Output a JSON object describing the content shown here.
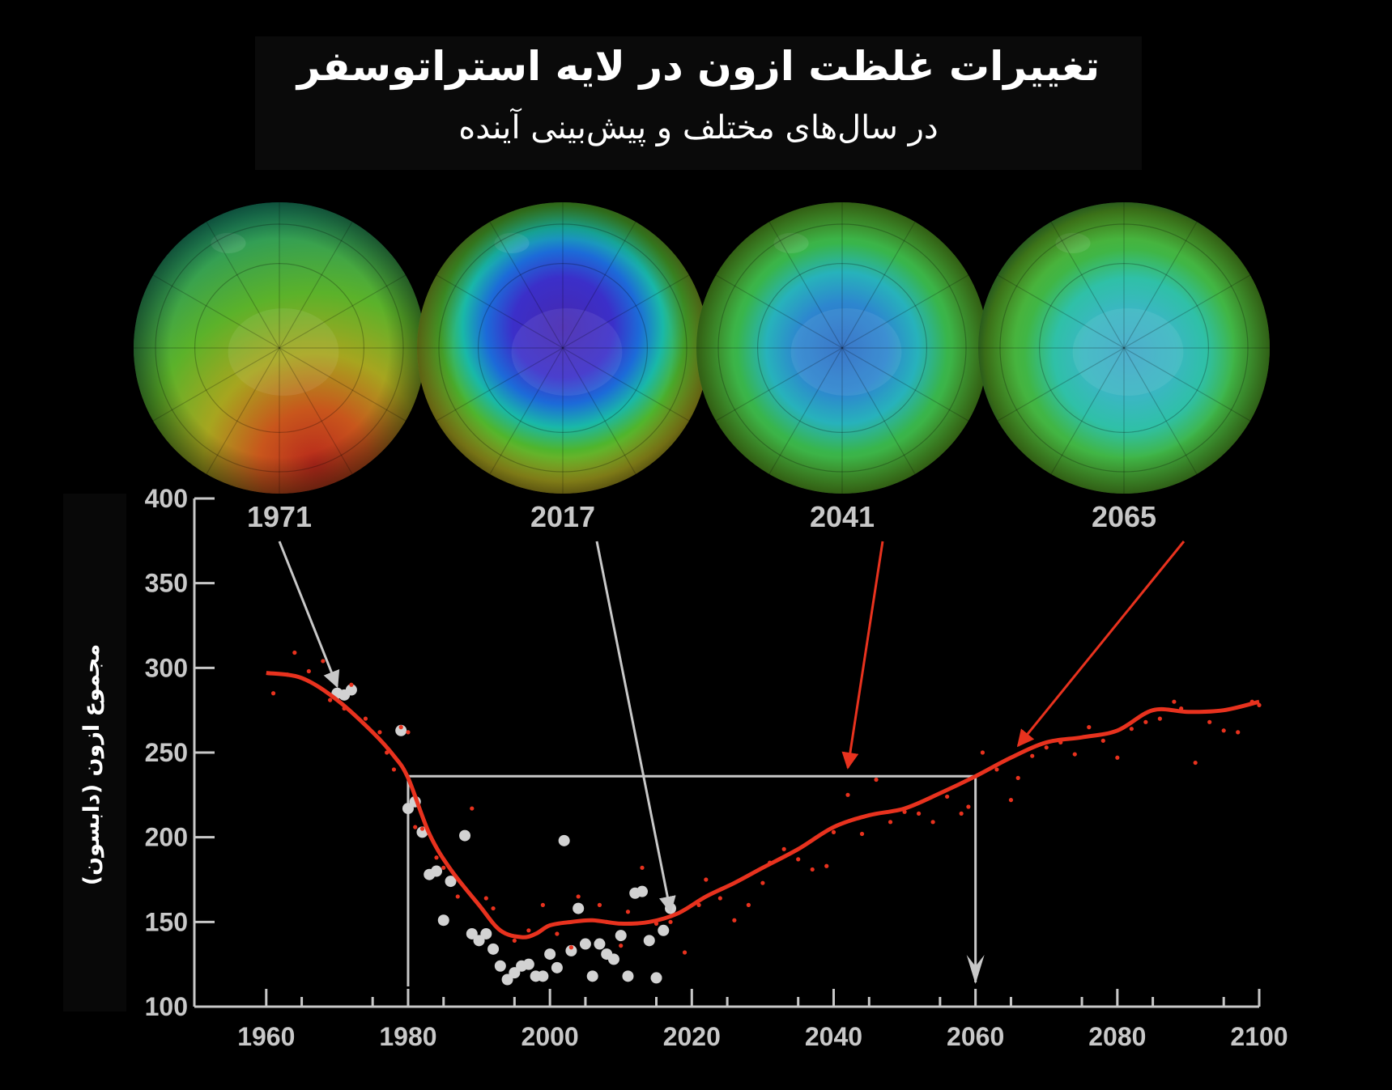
{
  "title": "تغییرات غلظت ازون در لایه استراتوسفر",
  "subtitle": "در سال‌های مختلف و پیش‌بینی آینده",
  "chart_data": {
    "type": "scatter",
    "ylabel": "مجموع ازون (دابسون)",
    "xlabel": "",
    "xlim": [
      1955,
      2100
    ],
    "ylim": [
      100,
      400
    ],
    "x_ticks": [
      1960,
      1980,
      2000,
      2020,
      2040,
      2060,
      2080,
      2100
    ],
    "y_ticks": [
      100,
      150,
      200,
      250,
      300,
      350,
      400
    ],
    "grid": false,
    "globes": [
      {
        "year": "1971",
        "point": [
          1970,
          289
        ],
        "arrow_color": "#c8c8c8",
        "state": "thick"
      },
      {
        "year": "2017",
        "point": [
          2017,
          156
        ],
        "arrow_color": "#c8c8c8",
        "state": "hole"
      },
      {
        "year": "2041",
        "point": [
          2042,
          241
        ],
        "arrow_color": "#e8321e",
        "state": "recovering"
      },
      {
        "year": "2065",
        "point": [
          2066,
          254
        ],
        "arrow_color": "#e8321e",
        "state": "recovered"
      }
    ],
    "recovery_level": 236,
    "recovery_years": [
      1980,
      2060
    ],
    "series": [
      {
        "color": "#e8321e",
        "style": "smooth-line",
        "x": [
          1960,
          1965,
          1970,
          1975,
          1978,
          1980,
          1983,
          1986,
          1990,
          1993,
          1996,
          1998,
          2000,
          2003,
          2006,
          2010,
          2014,
          2018,
          2022,
          2026,
          2030,
          2035,
          2040,
          2045,
          2050,
          2055,
          2060,
          2065,
          2070,
          2075,
          2080,
          2085,
          2090,
          2095,
          2100
        ],
        "values": [
          297,
          294,
          281,
          262,
          248,
          235,
          202,
          181,
          160,
          145,
          141,
          143,
          148,
          150,
          151,
          149,
          150,
          155,
          165,
          173,
          182,
          193,
          206,
          213,
          217,
          226,
          236,
          247,
          256,
          259,
          263,
          275,
          274,
          275,
          280
        ]
      },
      {
        "color": "#e8321e",
        "style": "small-dots",
        "x": [
          1961,
          1963,
          1964,
          1966,
          1968,
          1969,
          1971,
          1972,
          1974,
          1976,
          1977,
          1978,
          1979,
          1980,
          1981,
          1982,
          1984,
          1985,
          1987,
          1989,
          1991,
          1992,
          1995,
          1997,
          1999,
          2001,
          2003,
          2004,
          2007,
          2008,
          2010,
          2011,
          2013,
          2015,
          2017,
          2019,
          2021,
          2022,
          2024,
          2026,
          2028,
          2030,
          2031,
          2033,
          2035,
          2037,
          2039,
          2040,
          2042,
          2044,
          2046,
          2048,
          2050,
          2052,
          2054,
          2056,
          2058,
          2059,
          2061,
          2063,
          2065,
          2066,
          2068,
          2070,
          2072,
          2074,
          2076,
          2078,
          2080,
          2082,
          2084,
          2086,
          2088,
          2089,
          2091,
          2093,
          2095,
          2097,
          2099,
          2100
        ],
        "values": [
          285,
          296,
          309,
          298,
          304,
          281,
          276,
          290,
          270,
          262,
          250,
          240,
          265,
          262,
          206,
          205,
          188,
          182,
          165,
          217,
          164,
          158,
          139,
          145,
          160,
          143,
          135,
          165,
          160,
          150,
          136,
          156,
          182,
          149,
          150,
          132,
          160,
          175,
          164,
          151,
          160,
          173,
          185,
          193,
          187,
          181,
          183,
          203,
          225,
          202,
          234,
          209,
          215,
          214,
          209,
          224,
          214,
          218,
          250,
          240,
          222,
          235,
          248,
          253,
          256,
          249,
          265,
          257,
          247,
          264,
          268,
          270,
          280,
          276,
          244,
          268,
          263,
          262,
          280,
          278
        ]
      },
      {
        "color": "#d2d2d2",
        "style": "large-dots",
        "x": [
          1970,
          1971,
          1972,
          1979,
          1980,
          1981,
          1982,
          1983,
          1984,
          1985,
          1986,
          1988,
          1989,
          1990,
          1991,
          1992,
          1993,
          1994,
          1995,
          1996,
          1997,
          1998,
          1999,
          2000,
          2001,
          2002,
          2003,
          2004,
          2005,
          2006,
          2007,
          2008,
          2009,
          2010,
          2011,
          2012,
          2013,
          2014,
          2015,
          2016,
          2017
        ],
        "values": [
          285,
          284,
          287,
          263,
          217,
          221,
          203,
          178,
          180,
          151,
          174,
          201,
          143,
          139,
          143,
          134,
          124,
          116,
          120,
          124,
          125,
          118,
          118,
          131,
          123,
          198,
          133,
          158,
          137,
          118,
          137,
          131,
          128,
          142,
          118,
          167,
          168,
          139,
          117,
          145,
          158
        ]
      }
    ]
  }
}
